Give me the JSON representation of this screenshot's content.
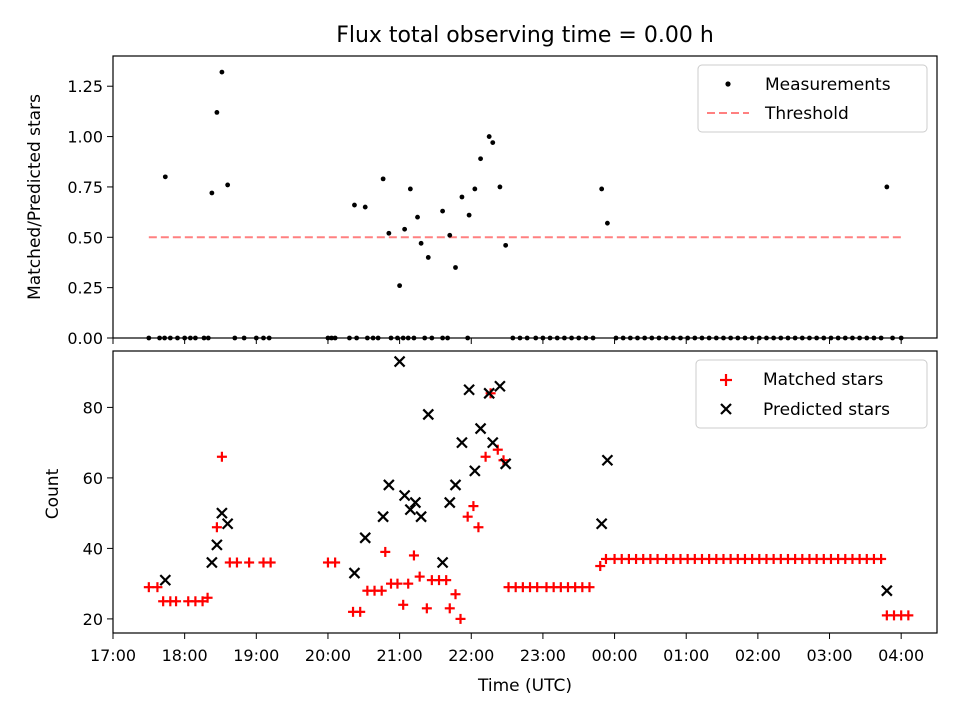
{
  "chart_data": [
    {
      "type": "scatter",
      "title": "Flux total observing time = 0.00 h",
      "xlabel": "",
      "ylabel": "Matched/Predicted stars",
      "ylim": [
        0,
        1.4
      ],
      "yticks": [
        0.0,
        0.25,
        0.5,
        0.75,
        1.0,
        1.25
      ],
      "ytick_labels": [
        "0.00",
        "0.25",
        "0.50",
        "0.75",
        "1.00",
        "1.25"
      ],
      "xlim_hours": [
        17.0,
        28.5
      ],
      "legend_position": "top-right",
      "legend": [
        "Measurements",
        "Threshold"
      ],
      "threshold": {
        "value": 0.5,
        "x_start": 17.5,
        "x_end": 28.0,
        "color": "#ff8080"
      },
      "series": [
        {
          "name": "Measurements",
          "color": "#000000",
          "points": [
            [
              17.5,
              0
            ],
            [
              17.65,
              0
            ],
            [
              17.72,
              0
            ],
            [
              17.8,
              0
            ],
            [
              17.9,
              0
            ],
            [
              18.0,
              0
            ],
            [
              18.08,
              0
            ],
            [
              18.15,
              0
            ],
            [
              18.27,
              0
            ],
            [
              18.33,
              0
            ],
            [
              18.7,
              0
            ],
            [
              18.83,
              0
            ],
            [
              19.0,
              0
            ],
            [
              19.1,
              0
            ],
            [
              19.18,
              0
            ],
            [
              17.73,
              0.8
            ],
            [
              18.38,
              0.72
            ],
            [
              18.45,
              1.12
            ],
            [
              18.52,
              1.32
            ],
            [
              18.6,
              0.76
            ],
            [
              20.0,
              0
            ],
            [
              20.05,
              0
            ],
            [
              20.1,
              0
            ],
            [
              20.3,
              0
            ],
            [
              20.4,
              0
            ],
            [
              20.55,
              0
            ],
            [
              20.63,
              0
            ],
            [
              20.7,
              0
            ],
            [
              20.88,
              0
            ],
            [
              20.97,
              0
            ],
            [
              21.05,
              0
            ],
            [
              21.12,
              0
            ],
            [
              21.2,
              0
            ],
            [
              21.35,
              0
            ],
            [
              21.45,
              0
            ],
            [
              21.6,
              0
            ],
            [
              21.67,
              0
            ],
            [
              21.95,
              0
            ],
            [
              20.37,
              0.66
            ],
            [
              20.52,
              0.65
            ],
            [
              20.77,
              0.79
            ],
            [
              20.85,
              0.52
            ],
            [
              21.0,
              0.26
            ],
            [
              21.07,
              0.54
            ],
            [
              21.15,
              0.74
            ],
            [
              21.25,
              0.6
            ],
            [
              21.3,
              0.47
            ],
            [
              21.4,
              0.4
            ],
            [
              21.6,
              0.63
            ],
            [
              21.7,
              0.51
            ],
            [
              21.78,
              0.35
            ],
            [
              21.87,
              0.7
            ],
            [
              21.97,
              0.61
            ],
            [
              22.05,
              0.74
            ],
            [
              22.13,
              0.89
            ],
            [
              22.25,
              1.0
            ],
            [
              22.3,
              0.97
            ],
            [
              22.4,
              0.75
            ],
            [
              22.48,
              0.46
            ],
            [
              22.58,
              0
            ],
            [
              22.68,
              0
            ],
            [
              22.78,
              0
            ],
            [
              22.9,
              0
            ],
            [
              23.0,
              0
            ],
            [
              23.1,
              0
            ],
            [
              23.2,
              0
            ],
            [
              23.3,
              0
            ],
            [
              23.4,
              0
            ],
            [
              23.5,
              0
            ],
            [
              23.6,
              0
            ],
            [
              23.7,
              0
            ],
            [
              23.82,
              0.74
            ],
            [
              23.9,
              0.57
            ],
            [
              24.02,
              0
            ],
            [
              24.12,
              0
            ],
            [
              24.22,
              0
            ],
            [
              24.32,
              0
            ],
            [
              24.42,
              0
            ],
            [
              24.52,
              0
            ],
            [
              24.62,
              0
            ],
            [
              24.72,
              0
            ],
            [
              24.82,
              0
            ],
            [
              24.92,
              0
            ],
            [
              25.02,
              0
            ],
            [
              25.12,
              0
            ],
            [
              25.22,
              0
            ],
            [
              25.32,
              0
            ],
            [
              25.42,
              0
            ],
            [
              25.52,
              0
            ],
            [
              25.62,
              0
            ],
            [
              25.72,
              0
            ],
            [
              25.82,
              0
            ],
            [
              25.92,
              0
            ],
            [
              26.02,
              0
            ],
            [
              26.12,
              0
            ],
            [
              26.22,
              0
            ],
            [
              26.32,
              0
            ],
            [
              26.42,
              0
            ],
            [
              26.52,
              0
            ],
            [
              26.62,
              0
            ],
            [
              26.72,
              0
            ],
            [
              26.82,
              0
            ],
            [
              26.92,
              0
            ],
            [
              27.02,
              0
            ],
            [
              27.12,
              0
            ],
            [
              27.22,
              0
            ],
            [
              27.32,
              0
            ],
            [
              27.42,
              0
            ],
            [
              27.52,
              0
            ],
            [
              27.62,
              0
            ],
            [
              27.72,
              0
            ],
            [
              27.8,
              0.75
            ],
            [
              27.88,
              0
            ],
            [
              28.0,
              0
            ]
          ]
        }
      ]
    },
    {
      "type": "scatter",
      "title": "",
      "xlabel": "Time (UTC)",
      "ylabel": "Count",
      "ylim": [
        16,
        96
      ],
      "yticks": [
        20,
        40,
        60,
        80
      ],
      "ytick_labels": [
        "20",
        "40",
        "60",
        "80"
      ],
      "xlim_hours": [
        17.0,
        28.5
      ],
      "xticks_hours": [
        17,
        18,
        19,
        20,
        21,
        22,
        23,
        24,
        25,
        26,
        27,
        28
      ],
      "xtick_labels": [
        "17:00",
        "18:00",
        "19:00",
        "20:00",
        "21:00",
        "22:00",
        "23:00",
        "00:00",
        "01:00",
        "02:00",
        "03:00",
        "04:00"
      ],
      "legend_position": "top-right",
      "legend": [
        "Matched stars",
        "Predicted stars"
      ],
      "series": [
        {
          "name": "Matched stars",
          "color": "#ff0000",
          "marker": "+",
          "points": [
            [
              17.5,
              29
            ],
            [
              17.62,
              29
            ],
            [
              17.7,
              25
            ],
            [
              17.8,
              25
            ],
            [
              17.88,
              25
            ],
            [
              18.05,
              25
            ],
            [
              18.15,
              25
            ],
            [
              18.25,
              25
            ],
            [
              18.32,
              26
            ],
            [
              18.45,
              46
            ],
            [
              18.52,
              66
            ],
            [
              18.63,
              36
            ],
            [
              18.73,
              36
            ],
            [
              18.9,
              36
            ],
            [
              19.1,
              36
            ],
            [
              19.2,
              36
            ],
            [
              20.0,
              36
            ],
            [
              20.1,
              36
            ],
            [
              20.35,
              22
            ],
            [
              20.45,
              22
            ],
            [
              20.55,
              28
            ],
            [
              20.65,
              28
            ],
            [
              20.75,
              28
            ],
            [
              20.8,
              39
            ],
            [
              20.88,
              30
            ],
            [
              20.97,
              30
            ],
            [
              21.05,
              24
            ],
            [
              21.12,
              30
            ],
            [
              21.2,
              38
            ],
            [
              21.28,
              32
            ],
            [
              21.38,
              23
            ],
            [
              21.45,
              31
            ],
            [
              21.55,
              31
            ],
            [
              21.65,
              31
            ],
            [
              21.7,
              23
            ],
            [
              21.78,
              27
            ],
            [
              21.85,
              20
            ],
            [
              21.95,
              49
            ],
            [
              22.03,
              52
            ],
            [
              22.1,
              46
            ],
            [
              22.2,
              66
            ],
            [
              22.27,
              84
            ],
            [
              22.37,
              68
            ],
            [
              22.45,
              65
            ],
            [
              22.52,
              29
            ],
            [
              22.62,
              29
            ],
            [
              22.72,
              29
            ],
            [
              22.82,
              29
            ],
            [
              22.92,
              29
            ],
            [
              23.05,
              29
            ],
            [
              23.15,
              29
            ],
            [
              23.25,
              29
            ],
            [
              23.35,
              29
            ],
            [
              23.45,
              29
            ],
            [
              23.55,
              29
            ],
            [
              23.65,
              29
            ],
            [
              23.8,
              35
            ],
            [
              23.88,
              37
            ],
            [
              24.0,
              37
            ],
            [
              24.1,
              37
            ],
            [
              24.2,
              37
            ],
            [
              24.3,
              37
            ],
            [
              24.4,
              37
            ],
            [
              24.5,
              37
            ],
            [
              24.6,
              37
            ],
            [
              24.72,
              37
            ],
            [
              24.82,
              37
            ],
            [
              24.92,
              37
            ],
            [
              25.02,
              37
            ],
            [
              25.12,
              37
            ],
            [
              25.22,
              37
            ],
            [
              25.32,
              37
            ],
            [
              25.42,
              37
            ],
            [
              25.52,
              37
            ],
            [
              25.62,
              37
            ],
            [
              25.72,
              37
            ],
            [
              25.82,
              37
            ],
            [
              25.92,
              37
            ],
            [
              26.02,
              37
            ],
            [
              26.12,
              37
            ],
            [
              26.22,
              37
            ],
            [
              26.32,
              37
            ],
            [
              26.42,
              37
            ],
            [
              26.52,
              37
            ],
            [
              26.62,
              37
            ],
            [
              26.72,
              37
            ],
            [
              26.82,
              37
            ],
            [
              26.92,
              37
            ],
            [
              27.02,
              37
            ],
            [
              27.12,
              37
            ],
            [
              27.22,
              37
            ],
            [
              27.32,
              37
            ],
            [
              27.42,
              37
            ],
            [
              27.52,
              37
            ],
            [
              27.62,
              37
            ],
            [
              27.72,
              37
            ],
            [
              27.8,
              21
            ],
            [
              27.9,
              21
            ],
            [
              28.0,
              21
            ],
            [
              28.1,
              21
            ]
          ]
        },
        {
          "name": "Predicted stars",
          "color": "#000000",
          "marker": "x",
          "points": [
            [
              17.73,
              31
            ],
            [
              18.38,
              36
            ],
            [
              18.45,
              41
            ],
            [
              18.52,
              50
            ],
            [
              18.6,
              47
            ],
            [
              20.37,
              33
            ],
            [
              20.52,
              43
            ],
            [
              20.77,
              49
            ],
            [
              20.85,
              58
            ],
            [
              21.0,
              93
            ],
            [
              21.07,
              55
            ],
            [
              21.15,
              51
            ],
            [
              21.22,
              53
            ],
            [
              21.3,
              49
            ],
            [
              21.4,
              78
            ],
            [
              21.6,
              36
            ],
            [
              21.7,
              53
            ],
            [
              21.78,
              58
            ],
            [
              21.87,
              70
            ],
            [
              21.97,
              85
            ],
            [
              22.05,
              62
            ],
            [
              22.13,
              74
            ],
            [
              22.25,
              84
            ],
            [
              22.3,
              70
            ],
            [
              22.4,
              86
            ],
            [
              22.48,
              64
            ],
            [
              23.82,
              47
            ],
            [
              23.9,
              65
            ],
            [
              27.8,
              28
            ]
          ]
        }
      ]
    }
  ]
}
